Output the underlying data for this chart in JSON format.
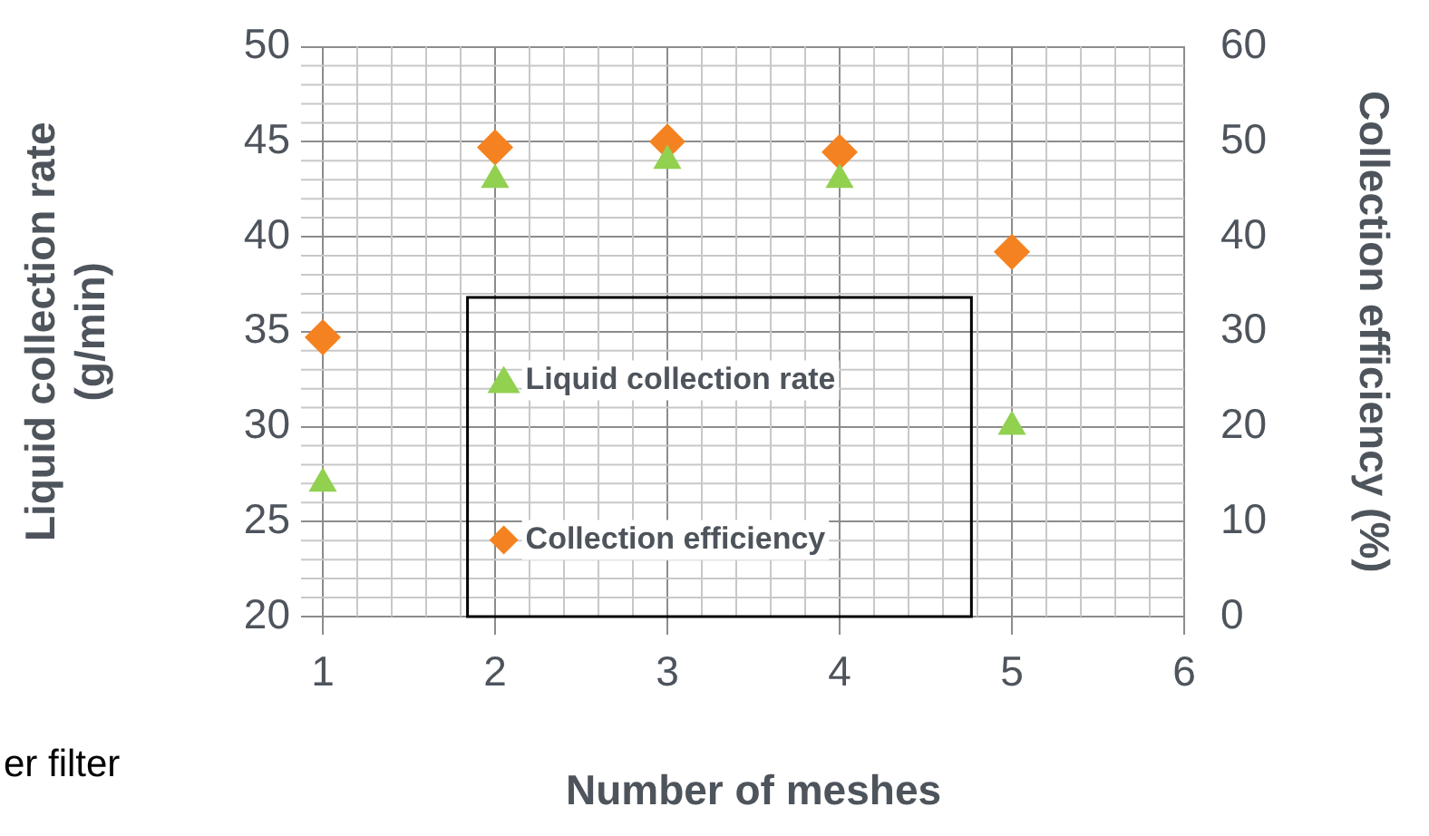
{
  "chart_data": {
    "type": "scatter",
    "xlabel": "Number of meshes",
    "ylabel": "Liquid collection rate (g/min)",
    "y2label": "Collection efficiency (%)",
    "x": [
      1,
      2,
      3,
      4,
      5
    ],
    "series": [
      {
        "name": "Liquid collection rate",
        "color": "#92d050",
        "marker": "triangle",
        "values": [
          27,
          43,
          44,
          43,
          30
        ]
      },
      {
        "name": "Collection efficiency",
        "color": "#f58220",
        "marker": "diamond",
        "axis": "y2",
        "values": [
          29.4,
          49.4,
          50,
          48.9,
          38.4
        ]
      }
    ],
    "xlim": [
      1,
      6
    ],
    "xticks": [
      1,
      2,
      3,
      4,
      5,
      6
    ],
    "ylim": [
      20,
      50
    ],
    "yticks": [
      20,
      25,
      30,
      35,
      40,
      45,
      50
    ],
    "y2lim": [
      0,
      60
    ],
    "y2ticks": [
      0,
      10,
      20,
      30,
      40,
      50,
      60
    ],
    "grid": true,
    "legend": "bottom",
    "annotations": [
      "er filter"
    ]
  }
}
